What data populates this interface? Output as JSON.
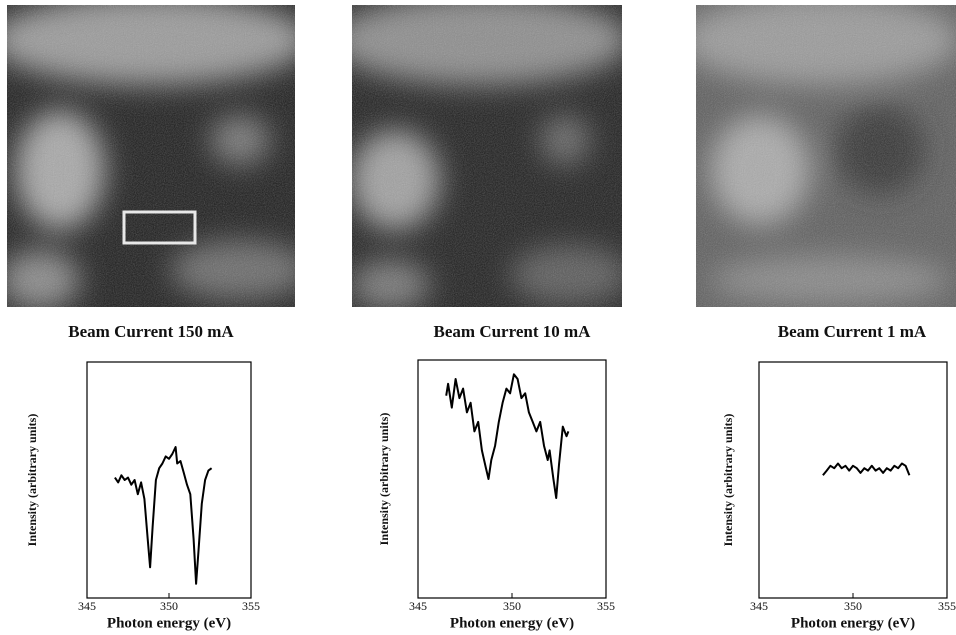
{
  "chart_data": [
    {
      "type": "line",
      "title": "Beam Current 150 mA",
      "xlabel": "Photon energy (eV)",
      "ylabel": "Intensity (arbitrary units)",
      "xlim": [
        345,
        355
      ],
      "xticks": [
        345,
        350,
        355
      ],
      "ylim": [
        0,
        100
      ],
      "color": "#000000",
      "x": [
        346.7,
        346.9,
        347.1,
        347.3,
        347.5,
        347.7,
        347.9,
        348.1,
        348.3,
        348.5,
        348.7,
        348.85,
        349.0,
        349.2,
        349.4,
        349.6,
        349.8,
        350.0,
        350.2,
        350.4,
        350.5,
        350.7,
        350.9,
        351.1,
        351.3,
        351.5,
        351.65,
        351.8,
        352.0,
        352.2,
        352.4,
        352.6
      ],
      "values": [
        51,
        49,
        52,
        50,
        51,
        48,
        50,
        44,
        49,
        42,
        25,
        13,
        30,
        50,
        55,
        57,
        60,
        59,
        61,
        64,
        57,
        58,
        53,
        48,
        44,
        25,
        6,
        20,
        40,
        50,
        54,
        55
      ]
    },
    {
      "type": "line",
      "title": "Beam Current 10 mA",
      "xlabel": "Photon energy (eV)",
      "ylabel": "Intensity (arbitrary units)",
      "xlim": [
        345,
        355
      ],
      "xticks": [
        345,
        350,
        355
      ],
      "ylim": [
        0,
        100
      ],
      "color": "#000000",
      "x": [
        346.5,
        346.6,
        346.8,
        347.0,
        347.2,
        347.4,
        347.6,
        347.8,
        348.0,
        348.2,
        348.4,
        348.6,
        348.75,
        348.9,
        349.1,
        349.3,
        349.5,
        349.7,
        349.9,
        350.1,
        350.3,
        350.5,
        350.7,
        350.9,
        351.1,
        351.3,
        351.5,
        351.7,
        351.9,
        352.0,
        352.2,
        352.35,
        352.5,
        352.7,
        352.9,
        353.0
      ],
      "values": [
        85,
        90,
        80,
        92,
        84,
        88,
        78,
        82,
        70,
        74,
        62,
        55,
        50,
        58,
        64,
        74,
        82,
        88,
        86,
        94,
        92,
        84,
        86,
        78,
        74,
        70,
        74,
        64,
        58,
        62,
        50,
        42,
        56,
        72,
        68,
        70
      ]
    },
    {
      "type": "line",
      "title": "Beam Current 1 mA",
      "xlabel": "Photon energy (eV)",
      "ylabel": "Intensity (arbitrary units)",
      "xlim": [
        345,
        355
      ],
      "xticks": [
        345,
        350,
        355
      ],
      "ylim": [
        0,
        100
      ],
      "color": "#000000",
      "x": [
        348.4,
        348.6,
        348.8,
        349.0,
        349.2,
        349.4,
        349.6,
        349.8,
        350.0,
        350.2,
        350.4,
        350.6,
        350.8,
        351.0,
        351.2,
        351.4,
        351.6,
        351.8,
        352.0,
        352.2,
        352.4,
        352.6,
        352.8,
        353.0
      ],
      "values": [
        52,
        54,
        56,
        55,
        57,
        55,
        56,
        54,
        56,
        55,
        53,
        55,
        54,
        56,
        54,
        55,
        53,
        55,
        54,
        56,
        55,
        57,
        56,
        52
      ]
    }
  ]
}
